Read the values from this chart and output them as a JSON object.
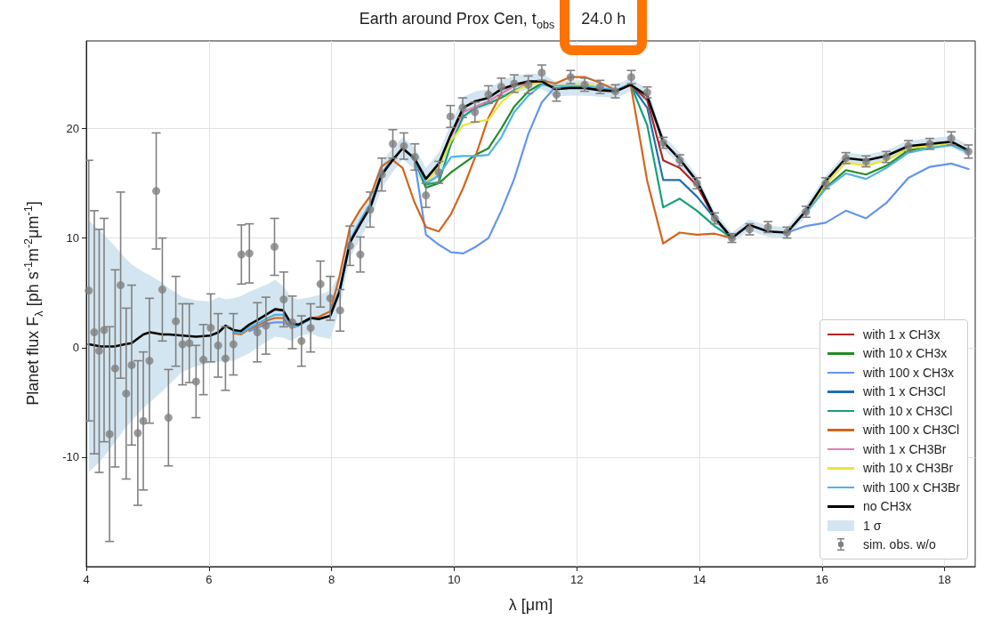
{
  "chart_data": {
    "type": "line",
    "title": "Earth around Prox Cen, t$_{obs}$",
    "annotations": [
      "24.0 h",
      "1 σ"
    ],
    "xlabel": "λ [μm]",
    "ylabel": "Planet flux F$_{λ}$ [ph s$^{-1}$m$^{-2}$μm$^{-1}$]",
    "xlim": [
      4,
      18.5
    ],
    "xticks": [
      4,
      6,
      8,
      10,
      12,
      14,
      16,
      18
    ],
    "ylim": [
      -20,
      28
    ],
    "yticks": [
      -10,
      0,
      10,
      20
    ],
    "grid": true,
    "legend": "bottom right",
    "x": [
      6.4,
      6.52,
      6.66,
      6.79,
      6.96,
      7.08,
      7.21,
      7.34,
      7.46,
      7.66,
      7.79,
      7.98,
      8.13,
      8.3,
      8.47,
      8.64,
      8.81,
      8.98,
      9.16,
      9.35,
      9.54,
      9.75,
      9.95,
      10.15,
      10.35,
      10.56,
      10.77,
      10.98,
      11.21,
      11.43,
      11.65,
      11.89,
      12.13,
      12.37,
      12.64,
      12.88,
      13.15,
      13.41,
      13.68,
      13.96,
      14.25,
      14.53,
      14.81,
      15.12,
      15.43,
      15.74,
      16.06,
      16.39,
      16.72,
      17.05,
      17.41,
      17.76,
      18.11,
      18.39
    ],
    "series": [
      {
        "name": "with 1 x CH3x",
        "color": "#b22222",
        "values": [
          null,
          null,
          null,
          null,
          null,
          null,
          null,
          null,
          null,
          null,
          null,
          null,
          null,
          null,
          null,
          null,
          null,
          null,
          null,
          null,
          null,
          null,
          null,
          null,
          null,
          null,
          null,
          null,
          null,
          null,
          null,
          null,
          null,
          null,
          null,
          24.0,
          22.6,
          17.1,
          16.4,
          14.8,
          11.8,
          10.0,
          null,
          null,
          null,
          null,
          null,
          null,
          null,
          null,
          null,
          null,
          null,
          null
        ]
      },
      {
        "name": "with 10 x CH3x",
        "color": "#228b22",
        "values": [
          null,
          null,
          null,
          null,
          null,
          null,
          null,
          null,
          null,
          null,
          null,
          null,
          null,
          null,
          null,
          null,
          null,
          null,
          null,
          17.2,
          14.6,
          15.0,
          16.0,
          16.8,
          17.6,
          18.2,
          20.0,
          22.0,
          23.4,
          24.1,
          23.7,
          23.8,
          23.8,
          23.6,
          null,
          null,
          null,
          null,
          null,
          null,
          null,
          null,
          null,
          null,
          null,
          12.3,
          14.6,
          16.2,
          15.8,
          16.6,
          18.0,
          18.4,
          18.6,
          17.9
        ]
      },
      {
        "name": "with 100 x CH3x",
        "color": "#6495ed",
        "values": [
          null,
          null,
          1.5,
          1.8,
          2.2,
          2.3,
          2.3,
          1.9,
          null,
          null,
          null,
          null,
          null,
          null,
          null,
          null,
          null,
          null,
          null,
          17.2,
          10.3,
          9.4,
          8.7,
          8.6,
          9.2,
          10.0,
          12.5,
          15.4,
          19.5,
          22.4,
          23.8,
          23.7,
          null,
          null,
          null,
          null,
          null,
          null,
          null,
          null,
          null,
          null,
          null,
          null,
          10.5,
          11.1,
          11.4,
          12.5,
          11.8,
          13.2,
          15.5,
          16.5,
          16.8,
          16.3
        ]
      },
      {
        "name": "with 1 x CH3Cl",
        "color": "#1f6fb0",
        "values": [
          null,
          null,
          null,
          null,
          null,
          null,
          null,
          null,
          null,
          null,
          null,
          null,
          null,
          null,
          null,
          null,
          null,
          null,
          null,
          null,
          null,
          null,
          null,
          null,
          null,
          null,
          null,
          null,
          null,
          null,
          null,
          null,
          null,
          null,
          null,
          24.0,
          21.9,
          15.3,
          15.3,
          13.8,
          11.8,
          10.0,
          null,
          null,
          null,
          null,
          null,
          null,
          null,
          null,
          null,
          null,
          null,
          null
        ]
      },
      {
        "name": "with 10 x CH3Cl",
        "color": "#12a07a",
        "values": [
          null,
          null,
          null,
          null,
          null,
          null,
          null,
          null,
          null,
          null,
          null,
          null,
          null,
          null,
          null,
          null,
          null,
          null,
          null,
          17.2,
          14.9,
          15.1,
          18.6,
          21.1,
          21.9,
          22.3,
          22.8,
          23.5,
          24.0,
          null,
          null,
          null,
          null,
          null,
          null,
          24.0,
          20.3,
          12.8,
          13.6,
          12.5,
          11.1,
          10.0,
          null,
          null,
          null,
          null,
          null,
          null,
          null,
          null,
          null,
          null,
          null,
          null
        ]
      },
      {
        "name": "with 100 x CH3Cl",
        "color": "#d2651c",
        "values": [
          1.3,
          1.2,
          1.7,
          2.0,
          2.5,
          2.7,
          2.7,
          1.8,
          2.0,
          2.7,
          2.8,
          3.3,
          6.5,
          11.0,
          12.6,
          13.9,
          16.5,
          17.2,
          16.4,
          13.3,
          11.0,
          10.6,
          12.2,
          14.6,
          17.5,
          21.0,
          23.2,
          23.9,
          24.1,
          24.4,
          24.1,
          24.7,
          24.7,
          24.2,
          23.5,
          24.0,
          15.2,
          9.5,
          10.5,
          10.3,
          10.4,
          10.0,
          null,
          null,
          null,
          null,
          null,
          null,
          null,
          null,
          null,
          null,
          null,
          null
        ]
      },
      {
        "name": "with 1 x CH3Br",
        "color": "#e07fb8",
        "values": [
          null,
          null,
          null,
          null,
          null,
          null,
          null,
          null,
          null,
          null,
          null,
          null,
          null,
          null,
          null,
          null,
          null,
          null,
          null,
          null,
          null,
          null,
          19.3,
          21.5,
          22.0,
          22.5,
          23.2,
          23.9,
          24.2,
          null,
          null,
          null,
          null,
          null,
          null,
          null,
          null,
          null,
          null,
          null,
          null,
          null,
          null,
          null,
          null,
          null,
          null,
          null,
          null,
          null,
          null,
          null,
          null,
          null
        ]
      },
      {
        "name": "with 10 x CH3Br",
        "color": "#ebe43a",
        "values": [
          null,
          null,
          null,
          null,
          null,
          null,
          null,
          null,
          null,
          null,
          null,
          null,
          null,
          null,
          null,
          null,
          null,
          null,
          null,
          null,
          15.0,
          16.5,
          18.9,
          20.3,
          20.6,
          20.8,
          22.4,
          23.4,
          24.0,
          24.2,
          23.8,
          24.1,
          24.1,
          23.8,
          null,
          null,
          null,
          null,
          null,
          null,
          null,
          null,
          null,
          null,
          null,
          12.4,
          14.9,
          16.9,
          16.6,
          17.1,
          18.2,
          18.4,
          18.6,
          17.9
        ]
      },
      {
        "name": "with 100 x CH3Br",
        "color": "#4fb3e8",
        "values": [
          1.4,
          1.3,
          1.8,
          2.2,
          2.7,
          3.0,
          3.0,
          1.9,
          2.0,
          2.6,
          null,
          3.0,
          5.3,
          9.8,
          11.6,
          13.2,
          15.9,
          17.1,
          18.2,
          17.2,
          15.0,
          15.7,
          17.4,
          17.5,
          17.5,
          17.6,
          19.2,
          21.5,
          23.0,
          24.0,
          23.9,
          23.9,
          23.9,
          23.7,
          23.5,
          24.1,
          null,
          null,
          null,
          null,
          null,
          null,
          null,
          null,
          null,
          12.3,
          14.5,
          15.9,
          15.4,
          16.4,
          17.8,
          18.2,
          18.5,
          17.8
        ]
      },
      {
        "name": "no CH3x",
        "color": "#000000",
        "x": [
          4.04,
          4.24,
          4.46,
          4.63,
          4.74,
          4.93,
          5.04,
          5.24,
          5.35,
          5.57,
          5.79,
          6.02,
          6.16,
          6.27,
          6.4,
          6.52,
          6.66,
          6.79,
          6.96,
          7.08,
          7.21,
          7.34,
          7.46,
          7.66,
          7.79,
          7.98,
          8.13,
          8.3,
          8.47,
          8.64,
          8.81,
          8.98,
          9.16,
          9.35,
          9.54,
          9.75,
          9.95,
          10.15,
          10.35,
          10.56,
          10.77,
          10.98,
          11.21,
          11.43,
          11.65,
          11.89,
          12.13,
          12.37,
          12.64,
          12.88,
          13.15,
          13.41,
          13.68,
          13.96,
          14.25,
          14.53,
          14.81,
          15.12,
          15.43,
          15.74,
          16.06,
          16.39,
          16.72,
          17.05,
          17.41,
          17.76,
          18.11,
          18.39
        ],
        "values": [
          0.3,
          0.1,
          0.1,
          0.3,
          0.4,
          1.2,
          1.4,
          1.2,
          1.2,
          1.1,
          1.0,
          1.1,
          1.4,
          2.0,
          1.6,
          1.5,
          2.1,
          2.5,
          3.1,
          3.5,
          3.4,
          2.2,
          2.1,
          2.7,
          2.6,
          2.9,
          5.1,
          9.6,
          11.3,
          12.9,
          15.7,
          17.0,
          18.2,
          17.3,
          15.4,
          16.8,
          19.5,
          21.9,
          22.5,
          22.8,
          23.6,
          24.0,
          24.3,
          24.3,
          23.6,
          23.7,
          23.7,
          23.5,
          23.4,
          24.0,
          23.0,
          18.8,
          17.2,
          15.2,
          11.9,
          10.0,
          11.2,
          10.6,
          10.5,
          12.5,
          15.2,
          17.3,
          17.1,
          17.5,
          18.4,
          18.6,
          18.8,
          18.0
        ],
        "lower": [
          -11.4,
          -10.3,
          -8.7,
          -7.4,
          -6.7,
          -5.5,
          -5.0,
          -4.0,
          -3.4,
          -2.2,
          -1.7,
          -1.4,
          -1.3,
          -1.2,
          -1.2,
          -0.9,
          -0.5,
          0,
          0.6,
          1.0,
          0.9,
          0.6,
          1.0,
          1.3,
          1.0,
          0.8,
          3.5,
          8.2,
          10.0,
          11.7,
          14.5,
          15.9,
          17.2,
          16.3,
          14.4,
          15.8,
          18.5,
          20.9,
          21.6,
          22.0,
          22.8,
          23.2,
          23.6,
          23.6,
          22.9,
          23.0,
          23.0,
          22.9,
          22.8,
          23.4,
          22.4,
          18.2,
          16.6,
          14.7,
          11.4,
          9.5,
          10.7,
          10.1,
          10.0,
          12.0,
          14.7,
          16.8,
          16.6,
          17.0,
          17.9,
          18.1,
          18.3,
          17.5
        ],
        "upper": [
          11.6,
          10.6,
          9.3,
          8.2,
          7.6,
          6.9,
          6.6,
          5.9,
          5.4,
          4.6,
          4.3,
          4.2,
          4.6,
          4.4,
          4.5,
          4.7,
          5.1,
          5.4,
          5.8,
          6.2,
          5.6,
          4.6,
          4.4,
          4.6,
          4.8,
          5.2,
          6.7,
          11.0,
          12.6,
          14.1,
          16.9,
          18.1,
          19.2,
          18.3,
          16.4,
          17.8,
          20.5,
          22.9,
          23.4,
          23.6,
          24.4,
          24.8,
          25.0,
          25.0,
          24.3,
          24.4,
          24.4,
          24.1,
          24.0,
          24.6,
          23.6,
          19.4,
          17.8,
          15.7,
          12.4,
          10.5,
          11.7,
          11.1,
          11.0,
          13.0,
          15.7,
          17.8,
          17.6,
          18.0,
          18.9,
          19.1,
          19.3,
          18.5
        ]
      },
      {
        "name": "sim. obs. w/o",
        "type": "scatter",
        "color": "#808080",
        "marker": "circle",
        "x": [
          4.04,
          4.13,
          4.21,
          4.29,
          4.38,
          4.47,
          4.56,
          4.65,
          4.74,
          4.84,
          4.93,
          5.03,
          5.14,
          5.24,
          5.34,
          5.46,
          5.57,
          5.68,
          5.79,
          5.91,
          6.03,
          6.15,
          6.27,
          6.4,
          6.53,
          6.66,
          6.79,
          6.93,
          7.07,
          7.22,
          7.36,
          7.51,
          7.66,
          7.82,
          7.98,
          8.14,
          8.3,
          8.47,
          8.63,
          8.82,
          9.0,
          9.18,
          9.36,
          9.54,
          9.75,
          9.94,
          10.14,
          10.34,
          10.56,
          10.77,
          10.98,
          11.21,
          11.43,
          11.67,
          11.9,
          12.13,
          12.38,
          12.63,
          12.89,
          13.15,
          13.41,
          13.68,
          13.96,
          14.25,
          14.53,
          14.82,
          15.12,
          15.43,
          15.74,
          16.06,
          16.39,
          16.72,
          17.05,
          17.41,
          17.76,
          18.11,
          18.39
        ],
        "values": [
          5.2,
          1.4,
          -0.3,
          1.6,
          -7.9,
          -1.9,
          5.7,
          -4.2,
          -1.6,
          -7.8,
          -6.7,
          -1.2,
          14.3,
          5.3,
          -6.4,
          2.4,
          0.3,
          0.4,
          -3.1,
          -1.1,
          1.8,
          0.2,
          -1.0,
          0.3,
          8.5,
          8.6,
          1.4,
          2.0,
          9.2,
          4.4,
          2.3,
          0.6,
          1.8,
          5.8,
          4.5,
          3.4,
          9.3,
          8.5,
          12.6,
          15.8,
          18.6,
          18.4,
          17.4,
          13.9,
          16.0,
          21.1,
          21.9,
          21.5,
          23.1,
          23.8,
          24.1,
          24.0,
          25.1,
          23.1,
          24.7,
          24.0,
          23.8,
          23.4,
          24.7,
          23.3,
          18.7,
          17.1,
          15.0,
          11.8,
          10.0,
          10.8,
          11.0,
          10.5,
          12.4,
          15.0,
          17.3,
          17.0,
          17.4,
          18.4,
          18.6,
          19.1,
          17.9
        ],
        "errors": [
          11.9,
          11.1,
          11.1,
          10.2,
          9.8,
          9.0,
          8.5,
          7.8,
          7.3,
          6.6,
          6.3,
          5.7,
          5.3,
          4.7,
          4.4,
          4.1,
          3.7,
          3.6,
          3.3,
          3.2,
          3.1,
          2.9,
          2.9,
          2.8,
          2.7,
          2.7,
          2.7,
          2.6,
          2.6,
          2.5,
          2.4,
          2.3,
          2.2,
          2.1,
          2.0,
          1.9,
          1.8,
          1.6,
          1.6,
          1.5,
          1.3,
          1.2,
          1.2,
          1.1,
          1.0,
          1.0,
          0.9,
          0.9,
          0.8,
          0.8,
          0.8,
          0.8,
          0.7,
          0.6,
          0.6,
          0.6,
          0.6,
          0.6,
          0.6,
          0.5,
          0.5,
          0.5,
          0.5,
          0.5,
          0.4,
          0.5,
          0.5,
          0.5,
          0.5,
          0.5,
          0.5,
          0.5,
          0.5,
          0.5,
          0.5,
          0.6,
          0.6
        ]
      }
    ]
  }
}
